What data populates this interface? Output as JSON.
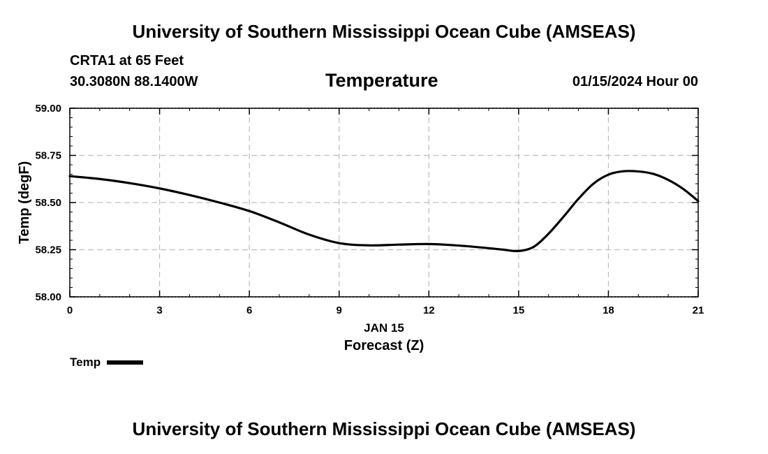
{
  "header": {
    "title": "University of Southern Mississippi Ocean Cube (AMSEAS)",
    "station": "CRTA1 at 65 Feet",
    "coordinates": "30.3080N  88.1400W",
    "datetime": "01/15/2024 Hour 00"
  },
  "footer": {
    "title": "University of Southern Mississippi Ocean Cube (AMSEAS)"
  },
  "legend": {
    "label": "Temp",
    "color": "#000000"
  },
  "chart_data": {
    "type": "line",
    "title": "Temperature",
    "xlabel": "Forecast (Z)",
    "xlabel_date": "JAN 15",
    "ylabel": "Temp (degF)",
    "xlim": [
      0,
      21
    ],
    "ylim": [
      58.0,
      59.0
    ],
    "xticks": [
      0,
      3,
      6,
      9,
      12,
      15,
      18,
      21
    ],
    "xtick_labels": [
      "0",
      "3",
      "6",
      "9",
      "12",
      "15",
      "18",
      "21"
    ],
    "yticks": [
      58.0,
      58.25,
      58.5,
      58.75,
      59.0
    ],
    "ytick_labels": [
      "58.00",
      "58.25",
      "58.50",
      "58.75",
      "59.00"
    ],
    "grid": true,
    "legend_position": "bottom-left",
    "series": [
      {
        "name": "Temp",
        "color": "#000000",
        "x": [
          0,
          1,
          2,
          3,
          4,
          5,
          6,
          7,
          8,
          9,
          10,
          11,
          12,
          13,
          14,
          14.5,
          15,
          15.5,
          16,
          16.5,
          17,
          17.5,
          18,
          18.5,
          19,
          19.5,
          20,
          20.5,
          21
        ],
        "values": [
          58.64,
          58.625,
          58.603,
          58.575,
          58.54,
          58.5,
          58.455,
          58.395,
          58.33,
          58.285,
          58.273,
          58.277,
          58.28,
          58.272,
          58.258,
          58.25,
          58.243,
          58.265,
          58.335,
          58.425,
          58.52,
          58.6,
          58.648,
          58.666,
          58.665,
          58.652,
          58.62,
          58.572,
          58.508
        ]
      }
    ]
  }
}
